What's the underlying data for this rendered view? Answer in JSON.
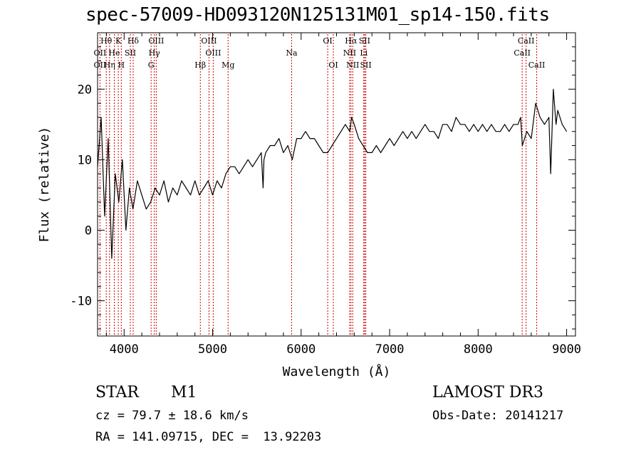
{
  "chart_data": {
    "type": "line",
    "title": "spec-57009-HD093120N125131M01_sp14-150.fits",
    "xlabel": "Wavelength (Å)",
    "ylabel": "Flux (relative)",
    "xlim": [
      3700,
      9100
    ],
    "ylim": [
      -15,
      28
    ],
    "xticks": [
      4000,
      5000,
      6000,
      7000,
      8000,
      9000
    ],
    "yticks": [
      -10,
      0,
      10,
      20
    ],
    "series": [
      {
        "name": "flux",
        "x": [
          3700,
          3740,
          3780,
          3820,
          3860,
          3900,
          3940,
          3980,
          4020,
          4060,
          4100,
          4150,
          4200,
          4250,
          4300,
          4350,
          4400,
          4450,
          4500,
          4550,
          4600,
          4650,
          4700,
          4750,
          4800,
          4850,
          4900,
          4950,
          5000,
          5050,
          5100,
          5150,
          5200,
          5250,
          5300,
          5350,
          5400,
          5450,
          5500,
          5550,
          5570,
          5580,
          5600,
          5650,
          5700,
          5750,
          5800,
          5850,
          5900,
          5950,
          6000,
          6050,
          6100,
          6150,
          6200,
          6250,
          6300,
          6350,
          6400,
          6450,
          6500,
          6550,
          6570,
          6600,
          6650,
          6700,
          6750,
          6800,
          6850,
          6900,
          6950,
          7000,
          7050,
          7100,
          7150,
          7200,
          7250,
          7300,
          7350,
          7400,
          7450,
          7500,
          7550,
          7600,
          7650,
          7700,
          7750,
          7800,
          7850,
          7900,
          7950,
          8000,
          8050,
          8100,
          8150,
          8200,
          8250,
          8300,
          8350,
          8400,
          8450,
          8480,
          8500,
          8550,
          8600,
          8650,
          8700,
          8750,
          8800,
          8820,
          8850,
          8880,
          8900,
          8950,
          9000
        ],
        "y": [
          9,
          16,
          2,
          13,
          -4,
          8,
          4,
          10,
          0,
          6,
          3,
          7,
          5,
          3,
          4,
          6,
          5,
          7,
          4,
          6,
          5,
          7,
          6,
          5,
          7,
          5,
          6,
          7,
          5,
          7,
          6,
          8,
          9,
          9,
          8,
          9,
          10,
          9,
          10,
          11,
          6,
          10,
          11,
          12,
          12,
          13,
          11,
          12,
          10,
          13,
          13,
          14,
          13,
          13,
          12,
          11,
          11,
          12,
          13,
          14,
          15,
          14,
          16,
          15,
          13,
          12,
          11,
          11,
          12,
          11,
          12,
          13,
          12,
          13,
          14,
          13,
          14,
          13,
          14,
          15,
          14,
          14,
          13,
          15,
          15,
          14,
          16,
          15,
          15,
          14,
          15,
          14,
          15,
          14,
          15,
          14,
          14,
          15,
          14,
          15,
          15,
          16,
          12,
          14,
          13,
          18,
          16,
          15,
          16,
          8,
          20,
          15,
          17,
          15,
          14
        ]
      }
    ],
    "lines_top": [
      {
        "label": "Hθ",
        "wl": 3798
      },
      {
        "label": "K",
        "wl": 3934
      },
      {
        "label": "Hδ",
        "wl": 4102
      },
      {
        "label": "OIII",
        "wl": 4363
      },
      {
        "label": "OIII",
        "wl": 4959
      },
      {
        "label": "OI",
        "wl": 6300
      },
      {
        "label": "Hα",
        "wl": 6563
      },
      {
        "label": "SII",
        "wl": 6717
      },
      {
        "label": "CaII",
        "wl": 8542
      }
    ],
    "lines_mid": [
      {
        "label": "OII",
        "wl": 3727
      },
      {
        "label": "He",
        "wl": 3889
      },
      {
        "label": "SII",
        "wl": 4070
      },
      {
        "label": "Hγ",
        "wl": 4341
      },
      {
        "label": "OIII",
        "wl": 5007
      },
      {
        "label": "Na",
        "wl": 5893
      },
      {
        "label": "NII",
        "wl": 6548
      },
      {
        "label": "Li",
        "wl": 6708
      },
      {
        "label": "CaII",
        "wl": 8498
      }
    ],
    "lines_bot": [
      {
        "label": "OII",
        "wl": 3727
      },
      {
        "label": "Hη",
        "wl": 3835
      },
      {
        "label": "H",
        "wl": 3968
      },
      {
        "label": "G",
        "wl": 4305
      },
      {
        "label": "Hβ",
        "wl": 4861
      },
      {
        "label": "Mg",
        "wl": 5175
      },
      {
        "label": "OI",
        "wl": 6364
      },
      {
        "label": "NII",
        "wl": 6583
      },
      {
        "label": "SII",
        "wl": 6731
      },
      {
        "label": "CaII",
        "wl": 8662
      }
    ]
  },
  "info": {
    "object_class": "STAR",
    "subclass": "M1",
    "survey": "LAMOST DR3",
    "cz": "cz = 79.7 ± 18.6 km/s",
    "obs_date": "Obs-Date: 20141217",
    "coords": "RA = 141.09715, DEC =  13.92203"
  },
  "colors": {
    "line_marker": "#cc0000",
    "spectrum": "#000000"
  }
}
